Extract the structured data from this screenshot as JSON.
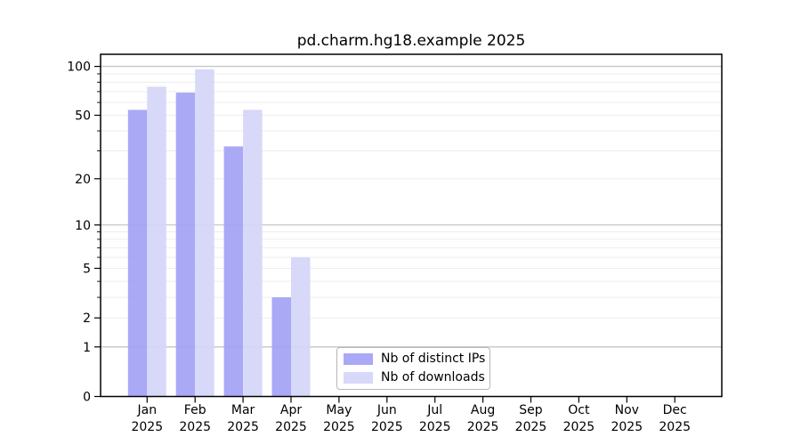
{
  "title": "pd.charm.hg18.example 2025",
  "chart_data": {
    "type": "bar",
    "title": "pd.charm.hg18.example 2025",
    "year_label": "2025",
    "categories": [
      "Jan",
      "Feb",
      "Mar",
      "Apr",
      "May",
      "Jun",
      "Jul",
      "Aug",
      "Sep",
      "Oct",
      "Nov",
      "Dec"
    ],
    "series": [
      {
        "name": "Nb of distinct IPs",
        "key": "distinct-ips",
        "color": "#a0a0f5",
        "values": [
          54,
          69,
          32,
          3,
          0,
          0,
          0,
          0,
          0,
          0,
          0,
          0
        ]
      },
      {
        "name": "Nb of downloads",
        "key": "downloads",
        "color": "#d4d4f8",
        "values": [
          75,
          96,
          54,
          6,
          0,
          0,
          0,
          0,
          0,
          0,
          0,
          0
        ]
      }
    ],
    "xlabel": "",
    "ylabel": "",
    "y_scale": "log1p",
    "ylim": [
      0,
      118.6
    ],
    "y_ticks": [
      0,
      1,
      2,
      5,
      10,
      20,
      50,
      100
    ],
    "y_major_grid": [
      1,
      10,
      100
    ],
    "y_minor_grid": [
      2,
      3,
      4,
      5,
      6,
      7,
      8,
      9,
      20,
      30,
      40,
      50,
      60,
      70,
      80,
      90
    ],
    "y_minor_unlabeled_ticks": [
      3,
      4,
      6,
      7,
      8,
      9,
      30,
      40,
      60,
      70,
      80,
      90
    ],
    "grid": true,
    "legend_position": "lower center (inside axes)"
  }
}
